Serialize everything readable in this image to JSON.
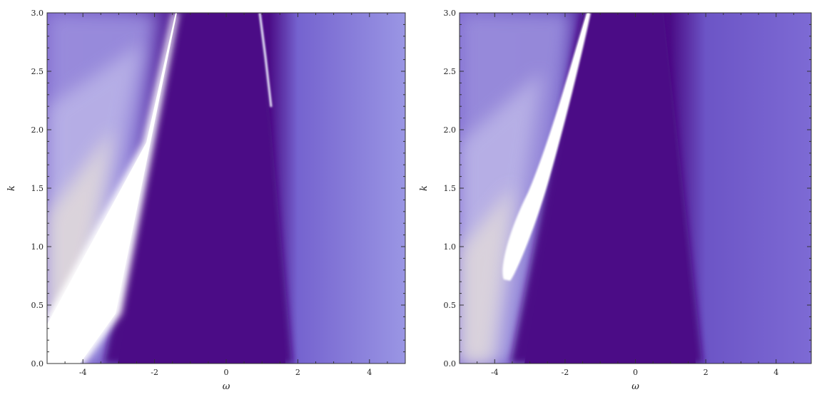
{
  "chart_data": [
    {
      "type": "heatmap",
      "xlabel": "ω",
      "ylabel": "k",
      "xlim": [
        -5,
        5
      ],
      "ylim": [
        0,
        3
      ],
      "x_ticks": [
        -4,
        -2,
        0,
        2,
        4
      ],
      "x_tick_labels": [
        "-4",
        "-2",
        "0",
        "2",
        "4"
      ],
      "y_ticks": [
        0,
        0.5,
        1,
        1.5,
        2,
        2.5,
        3
      ],
      "y_tick_labels": [
        "0.0",
        "0.5",
        "1.0",
        "1.5",
        "2.0",
        "2.5",
        "3.0"
      ],
      "colors": {
        "low": "#4b0c86",
        "mid": "#7f6ad8",
        "high": "#ffffff",
        "warm": "#efe6d6"
      },
      "features": [
        {
          "kind": "gap_low_band",
          "at_k0_from": -3.5,
          "at_k0_to": 1.9,
          "at_k3_from": -1.2,
          "at_k3_to": 0.9
        },
        {
          "kind": "white_band",
          "from": [
            -5,
            0.4
          ],
          "to": [
            -1.25,
            3.0
          ]
        },
        {
          "kind": "thin_white_line",
          "from": [
            1.0,
            3.0
          ],
          "to": [
            1.25,
            2.2
          ]
        }
      ]
    },
    {
      "type": "heatmap",
      "xlabel": "ω",
      "ylabel": "k",
      "xlim": [
        -5,
        5
      ],
      "ylim": [
        0,
        3
      ],
      "x_ticks": [
        -4,
        -2,
        0,
        2,
        4
      ],
      "x_tick_labels": [
        "-4",
        "-2",
        "0",
        "2",
        "4"
      ],
      "y_ticks": [
        0,
        0.5,
        1,
        1.5,
        2,
        2.5,
        3
      ],
      "y_tick_labels": [
        "0.0",
        "0.5",
        "1.0",
        "1.5",
        "2.0",
        "2.5",
        "3.0"
      ],
      "colors": {
        "low": "#4b0c86",
        "mid": "#7f6ad8",
        "high": "#ffffff",
        "warm": "#efe6d6"
      },
      "features": [
        {
          "kind": "gap_low_band",
          "at_k0_from": -3.3,
          "at_k0_to": 1.9,
          "at_k3_from": -1.2,
          "at_k3_to": 0.9
        },
        {
          "kind": "white_ellipse",
          "from": [
            -3.8,
            0.72
          ],
          "to": [
            -1.4,
            3.0
          ]
        }
      ]
    }
  ]
}
